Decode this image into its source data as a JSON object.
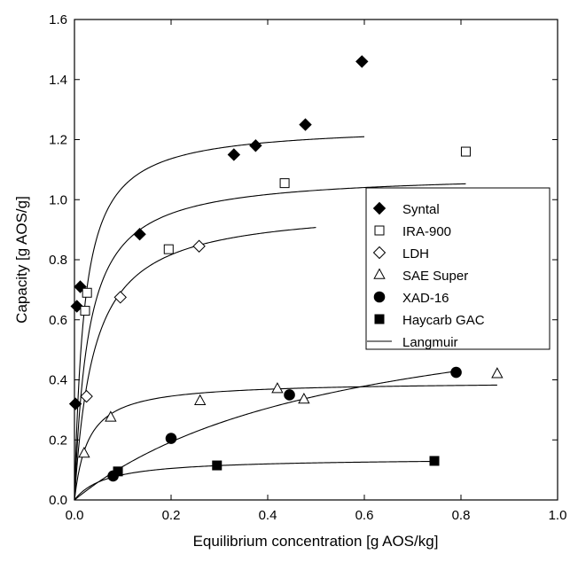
{
  "chart_data": {
    "type": "scatter",
    "title": "",
    "xlabel": "Equilibrium concentration [g AOS/kg]",
    "ylabel": "Capacity [g AOS/g]",
    "xlim": [
      0,
      1.0
    ],
    "ylim": [
      0,
      1.6
    ],
    "xticks": [
      "0.0",
      "0.2",
      "0.4",
      "0.6",
      "0.8",
      "1.0"
    ],
    "yticks": [
      "0.0",
      "0.2",
      "0.4",
      "0.6",
      "0.8",
      "1.0",
      "1.2",
      "1.4",
      "1.6"
    ],
    "grid": false,
    "legend_position": "right",
    "series": [
      {
        "name": "Syntal",
        "marker": "diamond-filled",
        "points": [
          [
            0.002,
            0.32
          ],
          [
            0.005,
            0.645
          ],
          [
            0.012,
            0.71
          ],
          [
            0.135,
            0.885
          ],
          [
            0.33,
            1.15
          ],
          [
            0.375,
            1.18
          ],
          [
            0.478,
            1.25
          ],
          [
            0.595,
            1.46
          ]
        ]
      },
      {
        "name": "IRA-900",
        "marker": "square-open",
        "points": [
          [
            0.022,
            0.63
          ],
          [
            0.026,
            0.69
          ],
          [
            0.195,
            0.835
          ],
          [
            0.435,
            1.055
          ],
          [
            0.81,
            1.16
          ]
        ]
      },
      {
        "name": "LDH",
        "marker": "diamond-open",
        "points": [
          [
            0.025,
            0.345
          ],
          [
            0.095,
            0.675
          ],
          [
            0.258,
            0.845
          ]
        ]
      },
      {
        "name": "SAE Super",
        "marker": "triangle-open",
        "points": [
          [
            0.02,
            0.155
          ],
          [
            0.075,
            0.275
          ],
          [
            0.26,
            0.33
          ],
          [
            0.42,
            0.37
          ],
          [
            0.475,
            0.335
          ],
          [
            0.875,
            0.42
          ]
        ]
      },
      {
        "name": "XAD-16",
        "marker": "circle-filled",
        "points": [
          [
            0.08,
            0.08
          ],
          [
            0.2,
            0.205
          ],
          [
            0.445,
            0.35
          ],
          [
            0.79,
            0.425
          ]
        ]
      },
      {
        "name": "Haycarb GAC",
        "marker": "square-filled",
        "points": [
          [
            0.09,
            0.095
          ],
          [
            0.295,
            0.115
          ],
          [
            0.745,
            0.13
          ]
        ]
      }
    ],
    "fit_curves": {
      "legend_name": "Langmuir",
      "curves": [
        {
          "qmax": 1.25,
          "K": 50,
          "xmax": 0.6
        },
        {
          "qmax": 1.09,
          "K": 35,
          "xmax": 0.81
        },
        {
          "qmax": 0.98,
          "K": 25,
          "xmax": 0.5
        },
        {
          "qmax": 0.395,
          "K": 35,
          "xmax": 0.875
        },
        {
          "qmax": 0.73,
          "K": 1.8,
          "xmax": 0.8
        },
        {
          "qmax": 0.14,
          "K": 15,
          "xmax": 0.75
        }
      ]
    }
  }
}
